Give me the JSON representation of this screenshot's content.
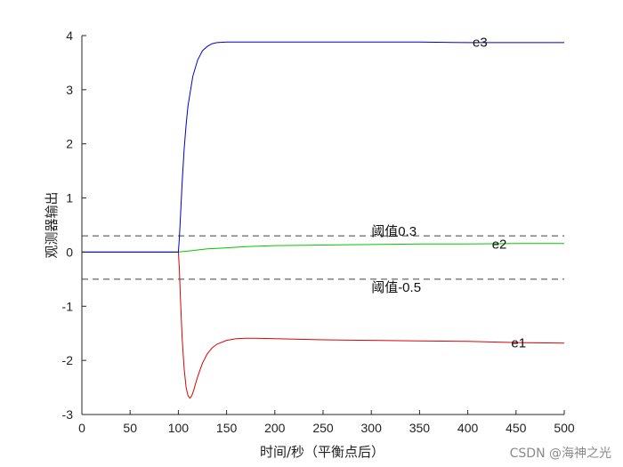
{
  "chart_data": {
    "type": "line",
    "title": "",
    "xlabel": "时间/秒（平衡点后）",
    "ylabel": "观测器输出",
    "xlim": [
      0,
      500
    ],
    "ylim": [
      -3,
      4
    ],
    "xticks": [
      0,
      50,
      100,
      150,
      200,
      250,
      300,
      350,
      400,
      450,
      500
    ],
    "yticks": [
      -3,
      -2,
      -1,
      0,
      1,
      2,
      3,
      4
    ],
    "series": [
      {
        "name": "e1",
        "color": "#e00000",
        "x": [
          0,
          100,
          101,
          102,
          104,
          106,
          108,
          110,
          112,
          114,
          116,
          118,
          120,
          125,
          130,
          135,
          140,
          150,
          160,
          170,
          180,
          200,
          250,
          300,
          350,
          400,
          450,
          500
        ],
        "y": [
          0,
          0,
          -0.3,
          -0.8,
          -1.6,
          -2.15,
          -2.5,
          -2.65,
          -2.7,
          -2.65,
          -2.55,
          -2.42,
          -2.3,
          -2.05,
          -1.88,
          -1.77,
          -1.7,
          -1.63,
          -1.6,
          -1.59,
          -1.59,
          -1.6,
          -1.62,
          -1.63,
          -1.64,
          -1.65,
          -1.67,
          -1.68
        ]
      },
      {
        "name": "e2",
        "color": "#00c800",
        "x": [
          0,
          100,
          105,
          110,
          120,
          130,
          140,
          150,
          170,
          200,
          250,
          300,
          350,
          400,
          450,
          500
        ],
        "y": [
          0,
          0,
          0.01,
          0.02,
          0.04,
          0.06,
          0.07,
          0.08,
          0.1,
          0.12,
          0.13,
          0.14,
          0.15,
          0.15,
          0.16,
          0.16
        ],
        "label_position": "right"
      },
      {
        "name": "e3",
        "color": "#0000c8",
        "x": [
          0,
          100,
          101,
          102,
          104,
          106,
          108,
          110,
          115,
          120,
          125,
          130,
          135,
          140,
          150,
          160,
          170,
          200,
          250,
          300,
          350,
          400,
          450,
          500
        ],
        "y": [
          0,
          0,
          0.25,
          0.6,
          1.3,
          1.9,
          2.35,
          2.7,
          3.25,
          3.55,
          3.72,
          3.8,
          3.85,
          3.87,
          3.88,
          3.88,
          3.88,
          3.88,
          3.88,
          3.88,
          3.88,
          3.87,
          3.87,
          3.87
        ]
      }
    ],
    "thresholds": [
      {
        "value": 0.3,
        "label": "阈值0.3",
        "style": "dashed",
        "color": "#444444"
      },
      {
        "value": -0.5,
        "label": "阈值-0.5",
        "style": "dashed",
        "color": "#444444"
      }
    ],
    "series_labels": [
      {
        "text": "e3",
        "x": 405,
        "y": 3.88
      },
      {
        "text": "e2",
        "x": 425,
        "y": 0.15
      },
      {
        "text": "e1",
        "x": 445,
        "y": -1.68
      }
    ]
  },
  "watermark": "CSDN @海神之光"
}
